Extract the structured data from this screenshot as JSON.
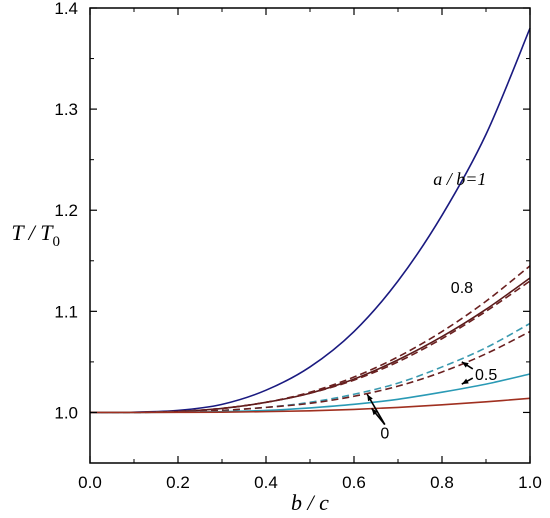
{
  "chart_data": {
    "type": "line",
    "title": "",
    "xlabel": "b / c",
    "ylabel": "T / T",
    "ylabel_subscript": "0",
    "xlim": [
      0.0,
      1.0
    ],
    "ylim": [
      0.95,
      1.4
    ],
    "xticks": [
      0.0,
      0.2,
      0.4,
      0.6,
      0.8,
      1.0
    ],
    "xtick_labels": [
      "0.0",
      "0.2",
      "0.4",
      "0.6",
      "0.8",
      "1.0"
    ],
    "yticks": [
      1.0,
      1.1,
      1.2,
      1.3,
      1.4
    ],
    "ytick_labels": [
      "1.0",
      "1.1",
      "1.2",
      "1.3",
      "1.4"
    ],
    "grid": false,
    "series": [
      {
        "color": "#1a1a80",
        "dash": "solid",
        "x": [
          0,
          0.1,
          0.2,
          0.3,
          0.4,
          0.5,
          0.6,
          0.7,
          0.8,
          0.9,
          1.0
        ],
        "y": [
          1.0,
          1.0003,
          1.002,
          1.008,
          1.022,
          1.045,
          1.08,
          1.13,
          1.195,
          1.275,
          1.38
        ]
      },
      {
        "color": "#5a1a1a",
        "dash": "solid",
        "x": [
          0,
          0.1,
          0.2,
          0.3,
          0.4,
          0.5,
          0.6,
          0.7,
          0.8,
          0.9,
          1.0
        ],
        "y": [
          1.0,
          1.0001,
          1.001,
          1.004,
          1.01,
          1.019,
          1.033,
          1.052,
          1.075,
          1.102,
          1.133
        ]
      },
      {
        "color": "#6a2020",
        "dash": "dashed",
        "x": [
          0,
          0.1,
          0.2,
          0.3,
          0.4,
          0.5,
          0.6,
          0.7,
          0.8,
          0.9,
          1.0
        ],
        "y": [
          1.0,
          1.0001,
          1.001,
          1.004,
          1.01,
          1.02,
          1.035,
          1.055,
          1.08,
          1.11,
          1.145
        ]
      },
      {
        "color": "#6a2020",
        "dash": "dashed",
        "x": [
          0,
          0.1,
          0.2,
          0.3,
          0.4,
          0.5,
          0.6,
          0.7,
          0.8,
          0.9,
          1.0
        ],
        "y": [
          1.0,
          1.0001,
          1.001,
          1.004,
          1.01,
          1.019,
          1.032,
          1.05,
          1.073,
          1.1,
          1.13
        ]
      },
      {
        "color": "#3a9ab0",
        "dash": "dashed",
        "x": [
          0,
          0.1,
          0.2,
          0.3,
          0.4,
          0.5,
          0.6,
          0.7,
          0.8,
          0.9,
          1.0
        ],
        "y": [
          1.0,
          1.0001,
          1.0005,
          1.002,
          1.005,
          1.01,
          1.018,
          1.029,
          1.045,
          1.064,
          1.088
        ]
      },
      {
        "color": "#6a2020",
        "dash": "dashed",
        "x": [
          0,
          0.1,
          0.2,
          0.3,
          0.4,
          0.5,
          0.6,
          0.7,
          0.8,
          0.9,
          1.0
        ],
        "y": [
          1.0,
          1.0001,
          1.0005,
          1.002,
          1.005,
          1.009,
          1.016,
          1.026,
          1.04,
          1.058,
          1.08
        ]
      },
      {
        "color": "#2a9ab5",
        "dash": "solid",
        "x": [
          0,
          0.1,
          0.2,
          0.3,
          0.4,
          0.5,
          0.6,
          0.7,
          0.8,
          0.9,
          1.0
        ],
        "y": [
          1.0,
          1.0,
          1.0002,
          1.0008,
          1.002,
          1.0045,
          1.008,
          1.013,
          1.02,
          1.028,
          1.038
        ]
      },
      {
        "color": "#a03020",
        "dash": "solid",
        "x": [
          0,
          0.1,
          0.2,
          0.3,
          0.4,
          0.5,
          0.6,
          0.7,
          0.8,
          0.9,
          1.0
        ],
        "y": [
          1.0,
          1.0,
          1.0001,
          1.0003,
          1.0008,
          1.0016,
          1.003,
          1.005,
          1.0075,
          1.0105,
          1.014
        ]
      }
    ],
    "annotations": [
      {
        "text": "a / b=1",
        "x": 0.78,
        "y": 1.225
      },
      {
        "text": "0.8",
        "x": 0.82,
        "y": 1.118
      },
      {
        "text": "0.5",
        "x": 0.875,
        "y": 1.032
      },
      {
        "text": "0",
        "x": 0.66,
        "y": 0.974
      }
    ]
  }
}
